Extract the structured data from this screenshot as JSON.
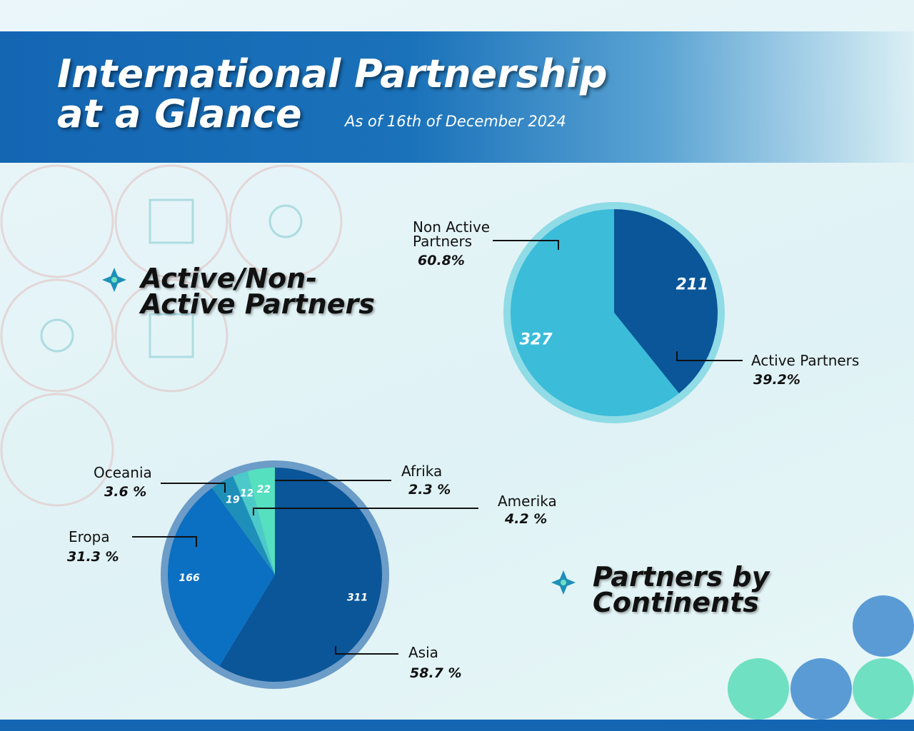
{
  "header": {
    "title": [
      "International Partnership",
      "at a Glance"
    ],
    "subtitle": "As of 16th of December 2024"
  },
  "chart_data": [
    {
      "type": "pie",
      "title": "Active/Non-Active Partners",
      "categories": [
        "Active Partners",
        "Non Active Partners"
      ],
      "values": [
        211,
        327
      ],
      "percentages": [
        39.2,
        60.8
      ],
      "percentage_labels": [
        "39.2%",
        "60.8%"
      ],
      "colors": [
        "#0a5699",
        "#3bbcd9"
      ]
    },
    {
      "type": "pie",
      "title": "Partners by Continents",
      "categories": [
        "Asia",
        "Eropa",
        "Oceania",
        "Afrika",
        "Amerika"
      ],
      "values": [
        311,
        166,
        19,
        12,
        22
      ],
      "percentages": [
        58.7,
        31.3,
        3.6,
        2.3,
        4.2
      ],
      "percentage_labels": [
        "58.7 %",
        "31.3 %",
        "3.6 %",
        "2.3 %",
        "4.2 %"
      ],
      "colors": [
        "#0a5699",
        "#0b6fc2",
        "#1e8fb8",
        "#4cc9c9",
        "#55e0bf"
      ]
    }
  ]
}
